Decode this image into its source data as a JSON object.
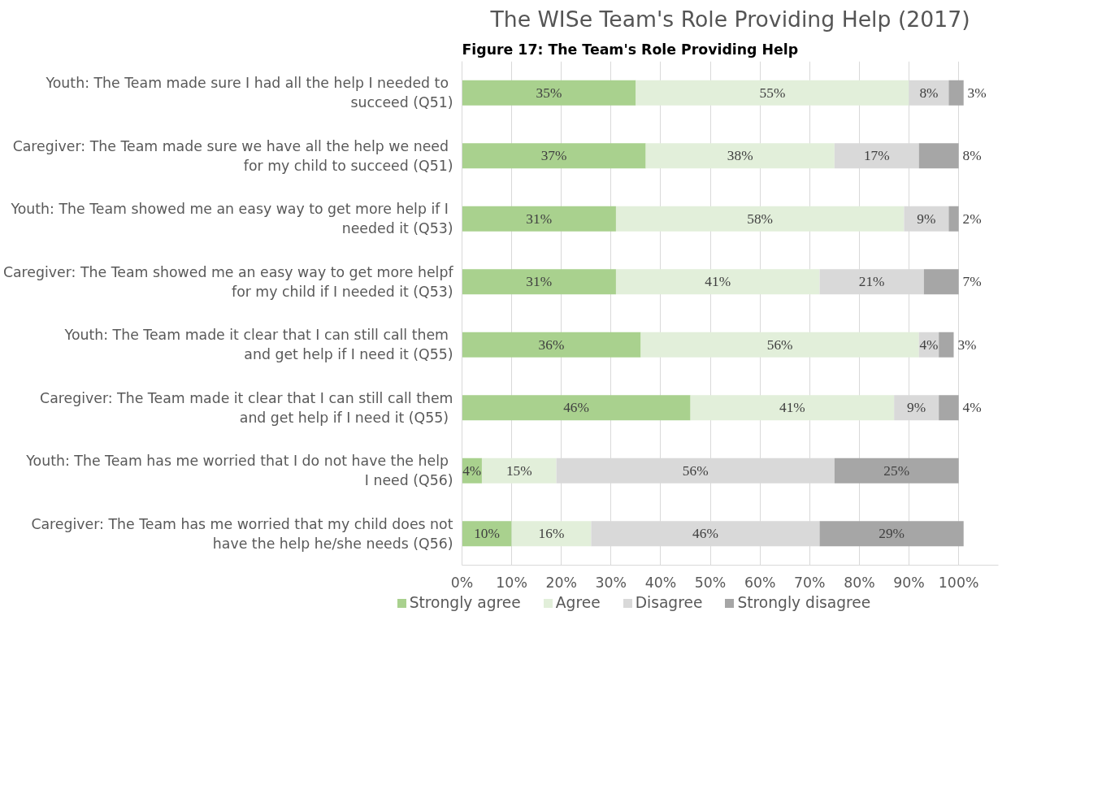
{
  "chart_data": {
    "type": "bar",
    "orientation": "horizontal",
    "stacked": true,
    "title": "The WISe Team's Role Providing Help (2017)",
    "annotations": [
      "Figure 17: The Team's Role Providing Help"
    ],
    "categories": [
      "Youth:  The Team made sure I had all the help I needed to succeed (Q51)",
      "Caregiver: The Team  made sure we have all the help we need for my child to succeed (Q51)",
      "Youth:  The Team showed me an easy way to get more help if I needed it (Q53)",
      "Caregiver: The Team showed me an easy way to get more helpf for my child if I needed it (Q53)",
      "Youth:  The Team made it clear that I can still call them and get help if I need it (Q55)",
      "Caregiver: The Team made it clear that I can still call them and get help if I need it  (Q55)",
      "Youth:  The Team has me worried that I do not have the help I need (Q56)",
      "Caregiver: The Team has me worried that my child does not have the help he/she needs (Q56)"
    ],
    "series": [
      {
        "name": "Strongly agree",
        "color": "#a9d18e",
        "values": [
          35,
          37,
          31,
          31,
          36,
          46,
          4,
          10
        ],
        "value_labels": [
          "35%",
          "37%",
          "31%",
          "31%",
          "36%",
          "46%",
          "4%",
          "10%"
        ]
      },
      {
        "name": "Agree",
        "color": "#e2efda",
        "values": [
          55,
          38,
          58,
          41,
          56,
          41,
          15,
          16
        ],
        "value_labels": [
          "55%",
          "38%",
          "58%",
          "41%",
          "56%",
          "41%",
          "15%",
          "16%"
        ]
      },
      {
        "name": "Disagree",
        "color": "#d9d9d9",
        "values": [
          8,
          17,
          9,
          21,
          4,
          9,
          56,
          46
        ],
        "value_labels": [
          "8%",
          "17%",
          "9%",
          "21%",
          "4%",
          "9%",
          "56%",
          "46%"
        ]
      },
      {
        "name": "Strongly disagree",
        "color": "#a6a6a6",
        "values": [
          3,
          8,
          2,
          7,
          3,
          4,
          25,
          29
        ],
        "value_labels": [
          "3%",
          "8%",
          "2%",
          "7%",
          "3%",
          "4%",
          "25%",
          "29%"
        ]
      }
    ],
    "xlim": [
      0,
      108
    ],
    "xticks": [
      {
        "value": 0,
        "label": "0%"
      },
      {
        "value": 10,
        "label": "10%"
      },
      {
        "value": 20,
        "label": "20%"
      },
      {
        "value": 30,
        "label": "30%"
      },
      {
        "value": 40,
        "label": "40%"
      },
      {
        "value": 50,
        "label": "50%"
      },
      {
        "value": 60,
        "label": "60%"
      },
      {
        "value": 70,
        "label": "70%"
      },
      {
        "value": 80,
        "label": "80%"
      },
      {
        "value": 90,
        "label": "90%"
      },
      {
        "value": 100,
        "label": "100%"
      }
    ],
    "grid": "x",
    "legend": "bottom"
  }
}
